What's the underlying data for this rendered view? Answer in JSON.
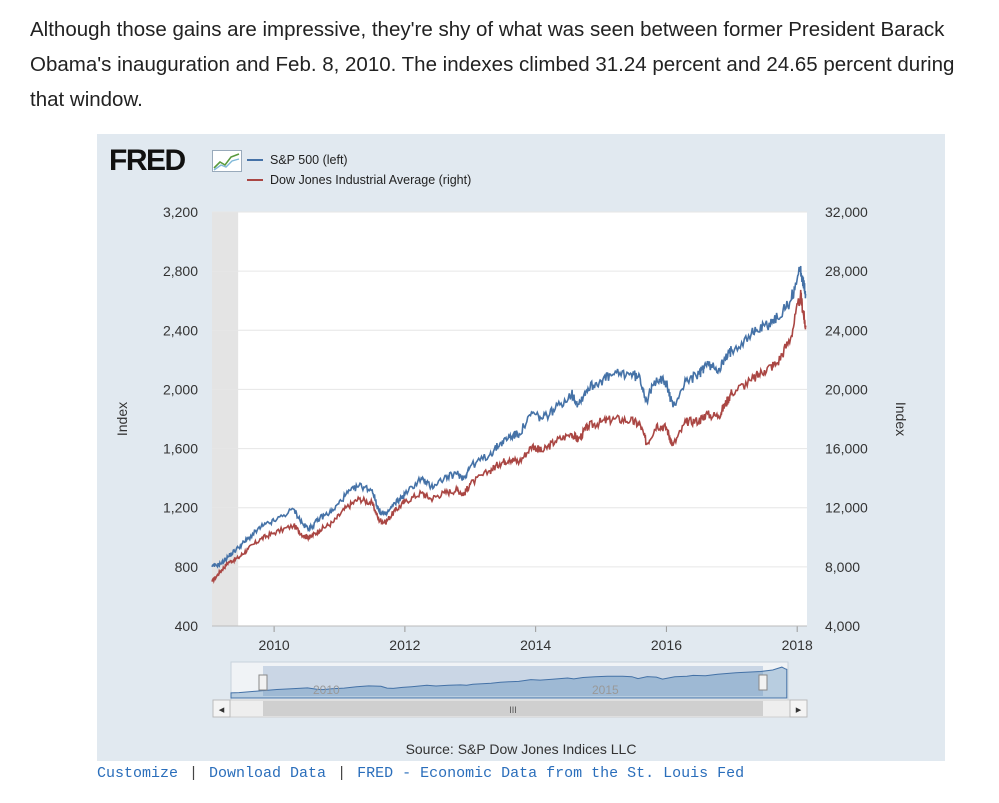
{
  "article": {
    "text": "Although those gains are impressive, they're shy of what was seen between former President Barack Obama's inauguration and Feb. 8, 2010. The indexes climbed 31.24 percent and 24.65 percent during that window."
  },
  "fred": {
    "logo": "FRED",
    "source": "Source: S&P Dow Jones Indices LLC",
    "links": {
      "customize": "Customize",
      "download": "Download Data",
      "fred_site": "FRED - Economic Data from the St. Louis Fed"
    },
    "navigator": {
      "label_left": "2010",
      "label_right": "2015",
      "scroll_left": "◂",
      "scroll_right": "▸",
      "thumb_grip": "III"
    }
  },
  "chart_data": {
    "type": "line",
    "xlabel": "",
    "ylabel_left": "Index",
    "ylabel_right": "Index",
    "x_ticks": [
      "2010",
      "2012",
      "2014",
      "2016",
      "2018"
    ],
    "y_left_ticks": [
      "400",
      "800",
      "1,200",
      "1,600",
      "2,000",
      "2,400",
      "2,800",
      "3,200"
    ],
    "y_right_ticks": [
      "4,000",
      "8,000",
      "12,000",
      "16,000",
      "20,000",
      "24,000",
      "28,000",
      "32,000"
    ],
    "ylim_left": [
      400,
      3200
    ],
    "ylim_right": [
      4000,
      32000
    ],
    "xlim": [
      2009.05,
      2018.15
    ],
    "shaded_recession": [
      2009.05,
      2009.45
    ],
    "colors": {
      "sp500": "#4572a7",
      "dow": "#aa4643",
      "grid": "#e6e6e6",
      "recession": "#e4e4e4"
    },
    "series": [
      {
        "name": "S&P 500 (left)",
        "axis": "left",
        "color": "#4572a7",
        "x": [
          2009.05,
          2009.18,
          2009.3,
          2009.45,
          2009.6,
          2009.8,
          2010.0,
          2010.3,
          2010.45,
          2010.55,
          2010.7,
          2010.9,
          2011.1,
          2011.3,
          2011.5,
          2011.6,
          2011.7,
          2011.85,
          2012.0,
          2012.25,
          2012.4,
          2012.6,
          2012.8,
          2012.9,
          2013.0,
          2013.3,
          2013.45,
          2013.6,
          2013.75,
          2013.95,
          2014.1,
          2014.3,
          2014.55,
          2014.65,
          2014.8,
          2015.0,
          2015.2,
          2015.45,
          2015.6,
          2015.7,
          2015.85,
          2016.0,
          2016.1,
          2016.3,
          2016.5,
          2016.6,
          2016.8,
          2016.9,
          2017.0,
          2017.3,
          2017.5,
          2017.7,
          2017.9,
          2018.05,
          2018.1,
          2018.13
        ],
        "values": [
          800,
          820,
          870,
          930,
          990,
          1070,
          1110,
          1190,
          1080,
          1060,
          1130,
          1180,
          1290,
          1350,
          1320,
          1180,
          1150,
          1230,
          1290,
          1400,
          1340,
          1400,
          1430,
          1400,
          1480,
          1560,
          1630,
          1680,
          1700,
          1840,
          1800,
          1870,
          1970,
          1900,
          2010,
          2060,
          2100,
          2110,
          2070,
          1920,
          2080,
          2040,
          1880,
          2060,
          2100,
          2170,
          2140,
          2200,
          2270,
          2380,
          2430,
          2480,
          2600,
          2820,
          2700,
          2640
        ]
      },
      {
        "name": "Dow Jones Industrial Average (right)",
        "axis": "right",
        "color": "#aa4643",
        "x": [
          2009.05,
          2009.18,
          2009.3,
          2009.45,
          2009.6,
          2009.8,
          2010.0,
          2010.3,
          2010.45,
          2010.55,
          2010.7,
          2010.9,
          2011.1,
          2011.3,
          2011.5,
          2011.6,
          2011.7,
          2011.85,
          2012.0,
          2012.25,
          2012.4,
          2012.6,
          2012.8,
          2012.9,
          2013.0,
          2013.3,
          2013.45,
          2013.6,
          2013.75,
          2013.95,
          2014.1,
          2014.3,
          2014.55,
          2014.65,
          2014.8,
          2015.0,
          2015.2,
          2015.45,
          2015.6,
          2015.7,
          2015.85,
          2016.0,
          2016.1,
          2016.3,
          2016.5,
          2016.6,
          2016.8,
          2016.9,
          2017.0,
          2017.3,
          2017.5,
          2017.7,
          2017.9,
          2018.05,
          2018.1,
          2018.13
        ],
        "values": [
          7000,
          7700,
          8300,
          8600,
          9200,
          9900,
          10300,
          10800,
          10100,
          10000,
          10500,
          11000,
          12000,
          12600,
          12300,
          11200,
          11000,
          11800,
          12400,
          13000,
          12600,
          13000,
          13200,
          12900,
          13600,
          14500,
          15000,
          15300,
          15100,
          16200,
          15800,
          16500,
          17000,
          16600,
          17500,
          17800,
          18000,
          17900,
          17600,
          16300,
          17600,
          17400,
          16200,
          17800,
          17900,
          18300,
          18200,
          19000,
          19800,
          20600,
          21300,
          21800,
          23500,
          26400,
          25000,
          24200
        ]
      }
    ]
  }
}
